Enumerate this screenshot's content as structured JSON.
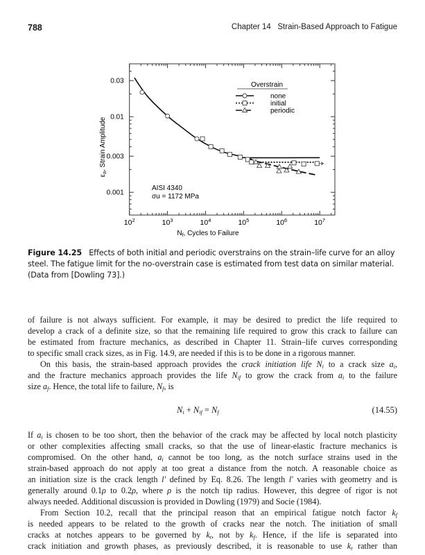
{
  "header": {
    "page_number": "788",
    "chapter_title": "Chapter 14   Strain-Based Approach to Fatigue"
  },
  "chart_data": {
    "type": "scatter",
    "xscale": "log",
    "yscale": "log",
    "xlim": [
      100,
      25000000
    ],
    "ylim": [
      0.0005,
      0.05
    ],
    "xlabel": "Nf, Cycles to Failure",
    "ylabel": "εa, Strain Amplitude",
    "x_ticks": [
      {
        "v": 100,
        "base": "10",
        "exp": "2"
      },
      {
        "v": 1000,
        "base": "10",
        "exp": "3"
      },
      {
        "v": 10000,
        "base": "10",
        "exp": "4"
      },
      {
        "v": 100000,
        "base": "10",
        "exp": "5"
      },
      {
        "v": 1000000,
        "base": "10",
        "exp": "6"
      },
      {
        "v": 10000000,
        "base": "10",
        "exp": "7"
      }
    ],
    "y_ticks": [
      {
        "v": 0.03,
        "label": "0.03"
      },
      {
        "v": 0.01,
        "label": "0.01"
      },
      {
        "v": 0.003,
        "label": "0.003"
      },
      {
        "v": 0.001,
        "label": "0.001"
      }
    ],
    "grid": false,
    "legend": {
      "title": "Overstrain",
      "placement": "top-right"
    },
    "annotation": [
      "AISI 4340",
      "σu = 1172 MPa"
    ],
    "series": [
      {
        "name": "none",
        "marker": "circle",
        "line": "solid",
        "points": [
          [
            215,
            0.021
          ],
          [
            1000,
            0.0102
          ],
          [
            5900,
            0.0051
          ]
        ],
        "curve": [
          [
            135,
            0.0327
          ],
          [
            300,
            0.0185
          ],
          [
            1000,
            0.0102
          ],
          [
            3000,
            0.0066
          ],
          [
            6000,
            0.0051
          ],
          [
            14000,
            0.004
          ],
          [
            30000,
            0.0034
          ],
          [
            80000,
            0.003
          ],
          [
            130000,
            0.00287
          ],
          [
            10000000,
            0.00287
          ]
        ]
      },
      {
        "name": "initial",
        "marker": "square",
        "line": "dotted",
        "points": [
          [
            8300,
            0.0051
          ],
          [
            13800,
            0.004
          ],
          [
            27000,
            0.00354
          ],
          [
            43500,
            0.00316
          ],
          [
            81000,
            0.00292
          ],
          [
            128000,
            0.00271
          ],
          [
            161000,
            0.00251
          ],
          [
            2100000,
            0.00245
          ],
          [
            3800000,
            0.00237
          ],
          [
            8500000,
            0.0024
          ]
        ],
        "runout": [
          8500000,
          0.0024
        ],
        "curve": [
          [
            160000,
            0.0025
          ],
          [
            10000000,
            0.0025
          ]
        ]
      },
      {
        "name": "periodic",
        "marker": "triangle",
        "line": "dashed",
        "points": [
          [
            210000,
            0.00251
          ],
          [
            260000,
            0.00225
          ],
          [
            430000,
            0.00225
          ],
          [
            850000,
            0.00191
          ],
          [
            870000,
            0.00217
          ],
          [
            1350000,
            0.00195
          ],
          [
            1650000,
            0.0022
          ],
          [
            2800000,
            0.00187
          ]
        ],
        "curve": [
          [
            130000,
            0.00287
          ],
          [
            200000,
            0.0026
          ],
          [
            500000,
            0.00232
          ],
          [
            1000000,
            0.00213
          ],
          [
            3000000,
            0.00188
          ],
          [
            7800000,
            0.0017
          ]
        ]
      }
    ]
  },
  "caption": {
    "label": "Figure 14.25",
    "text": "Effects of both initial and periodic overstrains on the strain–life curve for an alloy steel. The fatigue limit for the no-overstrain case is estimated from test data on similar material. (Data from [Dowling 73].)"
  },
  "body_lines": [
    [
      "of failure is not always sufficient. For example, it may be desired to predict the life required to"
    ],
    [
      "develop a crack of a definite size, so that the remaining life required to grow this crack to failure can"
    ],
    [
      "be estimated from fracture mechanics, as described in Chapter 11. Strain–life curves corresponding"
    ],
    [
      "to specific small crack sizes, as in Fig. 14.9, are needed if this is to be done in a rigorous manner."
    ],
    [
      "On this basis, the strain-based approach provides the ",
      {
        "i": "crack initiation life"
      },
      " ",
      {
        "v": "N",
        "s": "i"
      },
      " to a crack size ",
      {
        "v": "a",
        "s": "i"
      },
      ","
    ],
    [
      "and the fracture mechanics approach provides the life ",
      {
        "v": "N",
        "s": "if"
      },
      " to grow the crack from ",
      {
        "v": "a",
        "s": "i"
      },
      " to the failure"
    ],
    [
      "size ",
      {
        "v": "a",
        "s": "f"
      },
      ". Hence, the total life to failure, ",
      {
        "v": "N",
        "s": "f"
      },
      ", is"
    ],
    [
      "If ",
      {
        "v": "a",
        "s": "i"
      },
      " is chosen to be too short, then the behavior of the crack may be affected by local notch plasticity"
    ],
    [
      "or other complexities affecting small cracks, so that the use of linear-elastic fracture mechanics is"
    ],
    [
      "compromised. On the other hand, ",
      {
        "v": "a",
        "s": "i"
      },
      " cannot be too long, as the notch surface strains used in the"
    ],
    [
      "strain-based approach do not apply at too great a distance from the notch. A reasonable choice as"
    ],
    [
      "an initiation size is the crack length ",
      {
        "v": "l′"
      },
      " defined by Eq. 8.26. The length ",
      {
        "v": "l′"
      },
      " varies with geometry and is"
    ],
    [
      "generally around 0.1",
      {
        "v": "ρ"
      },
      " to 0.2",
      {
        "v": "ρ"
      },
      ", where ",
      {
        "v": "ρ"
      },
      " is the notch tip radius. However, this degree of rigor is not"
    ],
    [
      "always needed. Additional discussion is provided in Dowling (1979) and Socie (1984)."
    ],
    [
      "From Section 10.2, recall that the principal reason that an empirical fatigue notch factor ",
      {
        "v": "k",
        "s": "f"
      }
    ],
    [
      "is needed appears to be related to the growth of cracks near the notch. The initiation of small"
    ],
    [
      "cracks at notches appears to be governed by ",
      {
        "v": "k",
        "s": "t"
      },
      ", not by ",
      {
        "v": "k",
        "s": "f"
      },
      ". Hence, if the life is separated into"
    ],
    [
      "crack initiation and growth phases, as previously described, it is reasonable to use ",
      {
        "v": "k",
        "s": "t"
      },
      " rather than"
    ]
  ],
  "equation": {
    "body": [
      {
        "v": "N",
        "s": "i"
      },
      " + ",
      {
        "v": "N",
        "s": "if"
      },
      " = ",
      {
        "v": "N",
        "s": "f"
      }
    ],
    "number": "(14.55)"
  }
}
